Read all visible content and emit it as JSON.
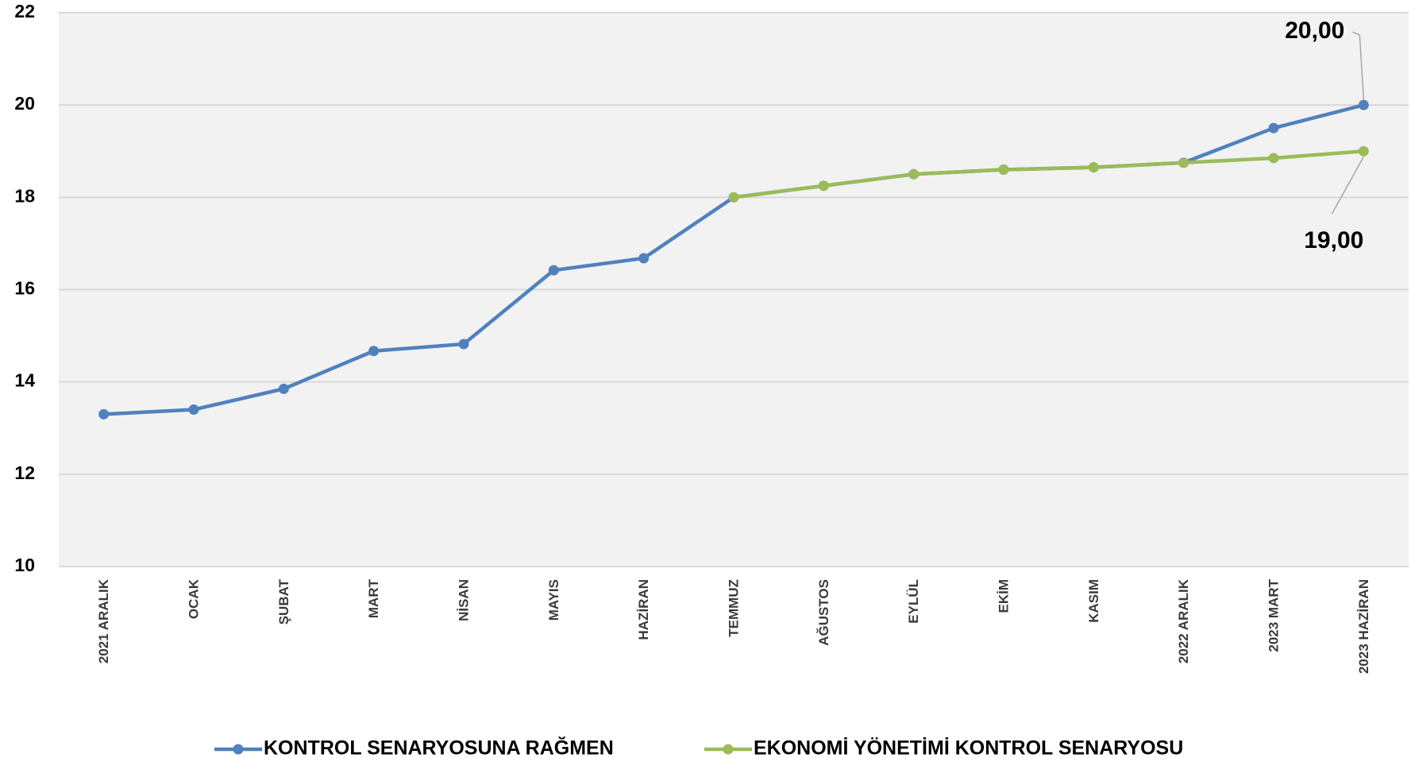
{
  "chart_data": {
    "type": "line",
    "categories": [
      "2021 ARALIK",
      "OCAK",
      "ŞUBAT",
      "MART",
      "NİSAN",
      "MAYIS",
      "HAZİRAN",
      "TEMMUZ",
      "AĞUSTOS",
      "EYLÜL",
      "EKİM",
      "KASIM",
      "2022 ARALIK",
      "2023 MART",
      "2023 HAZİRAN"
    ],
    "series": [
      {
        "name": "KONTROL SENARYOSUNA RAĞMEN",
        "color": "#4f81bd",
        "values": [
          13.3,
          13.4,
          13.85,
          14.67,
          14.82,
          16.42,
          16.68,
          18.0,
          18.25,
          18.5,
          18.6,
          18.65,
          18.75,
          19.5,
          20.0
        ],
        "value_labels": [
          null,
          null,
          null,
          null,
          null,
          null,
          null,
          null,
          null,
          null,
          null,
          null,
          null,
          null,
          "20,00"
        ]
      },
      {
        "name": "EKONOMİ YÖNETİMİ KONTROL SENARYOSU",
        "color": "#9bbb59",
        "values": [
          null,
          null,
          null,
          null,
          null,
          null,
          null,
          18.0,
          18.25,
          18.5,
          18.6,
          18.65,
          18.75,
          18.85,
          19.0
        ],
        "value_labels": [
          null,
          null,
          null,
          null,
          null,
          null,
          null,
          null,
          null,
          null,
          null,
          null,
          null,
          null,
          "19,00"
        ]
      }
    ],
    "ylim": [
      10,
      22
    ],
    "yticks": [
      10,
      12,
      14,
      16,
      18,
      20,
      22
    ],
    "grid": true,
    "legend": "bottom"
  }
}
